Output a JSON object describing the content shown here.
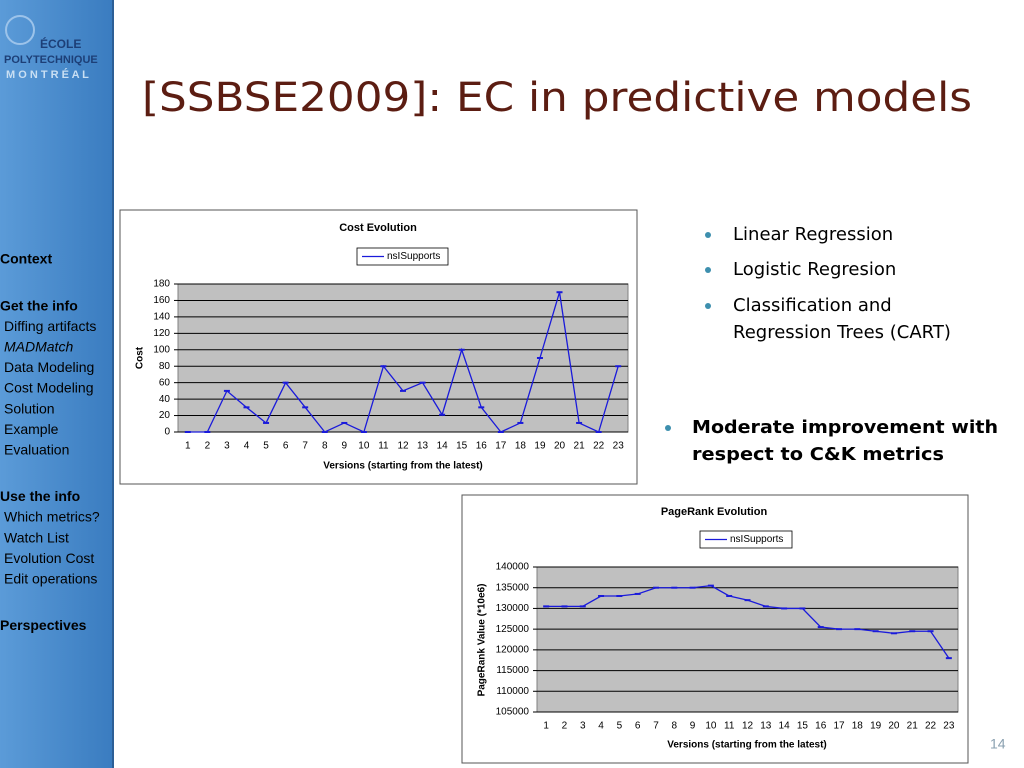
{
  "title": "[SSBSE2009]: EC in predictive models",
  "sidebar": {
    "logo": [
      "ÉCOLE",
      "POLYTECHNIQUE",
      "M O N T R É A L"
    ],
    "sections": [
      {
        "heading": "Context",
        "items": []
      },
      {
        "heading": "Get the info",
        "items": [
          "Diffing artifacts",
          "MADMatch",
          "Data Modeling",
          "Cost Modeling",
          "Solution",
          "Example",
          "Evaluation"
        ]
      },
      {
        "heading": "Use the info",
        "items": [
          "Which metrics?",
          "Watch List",
          "Evolution Cost",
          "Edit operations"
        ]
      },
      {
        "heading": "Perspectives",
        "items": []
      }
    ]
  },
  "bullets": [
    "Linear Regression",
    "Logistic Regresion",
    "Classification and Regression Trees (CART)"
  ],
  "highlight": "Moderate improvement with respect to C&K metrics",
  "page_number": "14",
  "chart_data": [
    {
      "type": "line",
      "title": "Cost Evolution",
      "x_label": "Versions (starting from the latest)",
      "y_label": "Cost",
      "categories": [
        "1",
        "2",
        "3",
        "4",
        "5",
        "6",
        "7",
        "8",
        "9",
        "10",
        "11",
        "12",
        "13",
        "14",
        "15",
        "16",
        "17",
        "18",
        "19",
        "20",
        "21",
        "22",
        "23"
      ],
      "series": [
        {
          "name": "nsISupports",
          "color": "#1a1adb",
          "values": [
            0,
            0,
            50,
            30,
            11,
            60,
            30,
            0,
            11,
            0,
            80,
            50,
            60,
            21,
            100,
            30,
            0,
            11,
            90,
            170,
            11,
            0,
            80
          ]
        }
      ],
      "ylim": [
        0,
        180
      ],
      "yticks": [
        0,
        20,
        40,
        60,
        80,
        100,
        120,
        140,
        160,
        180
      ],
      "grid": true,
      "legend": "top"
    },
    {
      "type": "line",
      "title": "PageRank Evolution",
      "x_label": "Versions (starting from the latest)",
      "y_label": "PageRank Value (*10e6)",
      "categories": [
        "1",
        "2",
        "3",
        "4",
        "5",
        "6",
        "7",
        "8",
        "9",
        "10",
        "11",
        "12",
        "13",
        "14",
        "15",
        "16",
        "17",
        "18",
        "19",
        "20",
        "21",
        "22",
        "23"
      ],
      "series": [
        {
          "name": "nsISupports",
          "color": "#1a1adb",
          "values": [
            130500,
            130500,
            130500,
            133000,
            133000,
            133500,
            135000,
            135000,
            135000,
            135500,
            133000,
            132000,
            130500,
            130000,
            130000,
            125500,
            125000,
            125000,
            124500,
            124000,
            124500,
            124500,
            118000
          ]
        }
      ],
      "ylim": [
        105000,
        140000
      ],
      "yticks": [
        105000,
        110000,
        115000,
        120000,
        125000,
        130000,
        135000,
        140000
      ],
      "grid": true,
      "legend": "top"
    }
  ]
}
